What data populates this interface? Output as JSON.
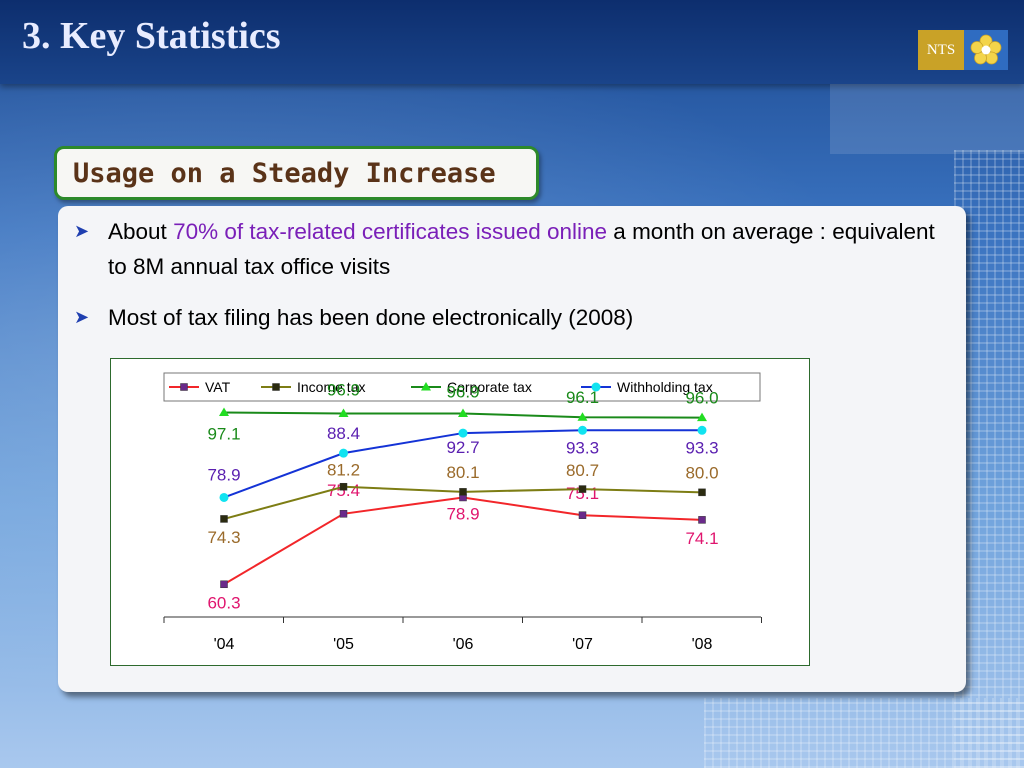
{
  "slide": {
    "title": "3. Key Statistics",
    "logo_text": "NTS",
    "subtitle": "Usage on a Steady Increase"
  },
  "bullets": [
    {
      "prefix": "About ",
      "highlight": "70% of tax-related certificates issued online",
      "suffix": " a month on average : equivalent to 8M annual tax office visits"
    },
    {
      "text": "Most of tax filing has been done electronically (2008)"
    }
  ],
  "colors": {
    "highlight": "#7a1fb8",
    "subtitle_border": "#2d8a2a",
    "subtitle_text": "#5a3318"
  },
  "chart_data": {
    "type": "line",
    "categories": [
      "'04",
      "'05",
      "'06",
      "'07",
      "'08"
    ],
    "ylim": [
      55,
      100
    ],
    "grid": false,
    "legend_position": "top",
    "series": [
      {
        "name": "VAT",
        "values": [
          60.3,
          75.4,
          78.9,
          75.1,
          74.1
        ],
        "color": "#f2262a",
        "label_color": "#e0156e",
        "marker": "square",
        "marker_color": "#6a2a8a"
      },
      {
        "name": "Income tax",
        "values": [
          74.3,
          81.2,
          80.1,
          80.7,
          80.0
        ],
        "color": "#7d7d14",
        "label_color": "#9a6a2a",
        "marker": "square",
        "marker_color": "#2b2b10"
      },
      {
        "name": "Corporate tax",
        "values": [
          97.1,
          96.9,
          96.9,
          96.1,
          96.0
        ],
        "color": "#1a8a1a",
        "label_color": "#1a8a1a",
        "marker": "triangle",
        "marker_color": "#22dd22"
      },
      {
        "name": "Withholding tax",
        "values": [
          78.9,
          88.4,
          92.7,
          93.3,
          93.3
        ],
        "color": "#1433d6",
        "label_color": "#5a1fb0",
        "marker": "circle",
        "marker_color": "#11e3f0"
      }
    ]
  }
}
